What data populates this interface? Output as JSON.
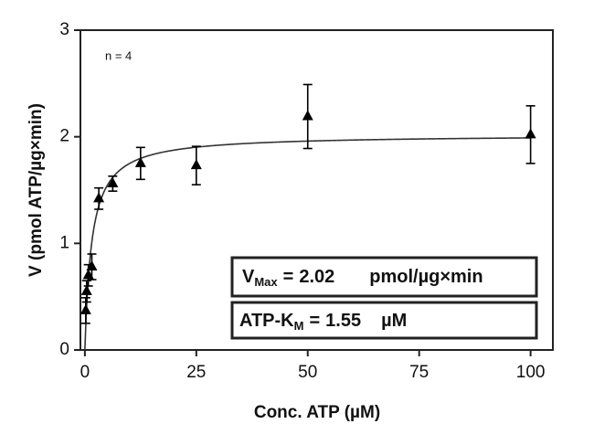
{
  "chart_data": {
    "type": "scatter",
    "x_label": "Conc. ATP (µM)",
    "y_label": "V (pmol ATP/µg×min)",
    "series": [
      {
        "color": "#000000",
        "x": [
          0.195,
          0.39,
          0.78,
          1.56,
          3.125,
          6.25,
          12.5,
          25,
          50,
          100
        ],
        "values": [
          0.37,
          0.55,
          0.7,
          0.78,
          1.42,
          1.56,
          1.75,
          1.73,
          2.19,
          2.02
        ],
        "errors": [
          0.12,
          0.1,
          0.1,
          0.12,
          0.1,
          0.07,
          0.15,
          0.18,
          0.3,
          0.27
        ]
      }
    ],
    "fit": {
      "vmax": 2.02,
      "km": 1.55
    },
    "annotations": {
      "n": "n = 4",
      "vmax_label": "V",
      "vmax_sub": "Max",
      "equals": "=",
      "vmax_unit": "pmol/µg×min",
      "km_label": "ATP-K",
      "km_sub": "M",
      "km_unit": "µM"
    },
    "xlim": [
      -1,
      105
    ],
    "ylim": [
      0,
      3
    ],
    "xticks": [
      0,
      25,
      50,
      75,
      100
    ],
    "yticks": [
      0,
      1,
      2,
      3
    ]
  }
}
